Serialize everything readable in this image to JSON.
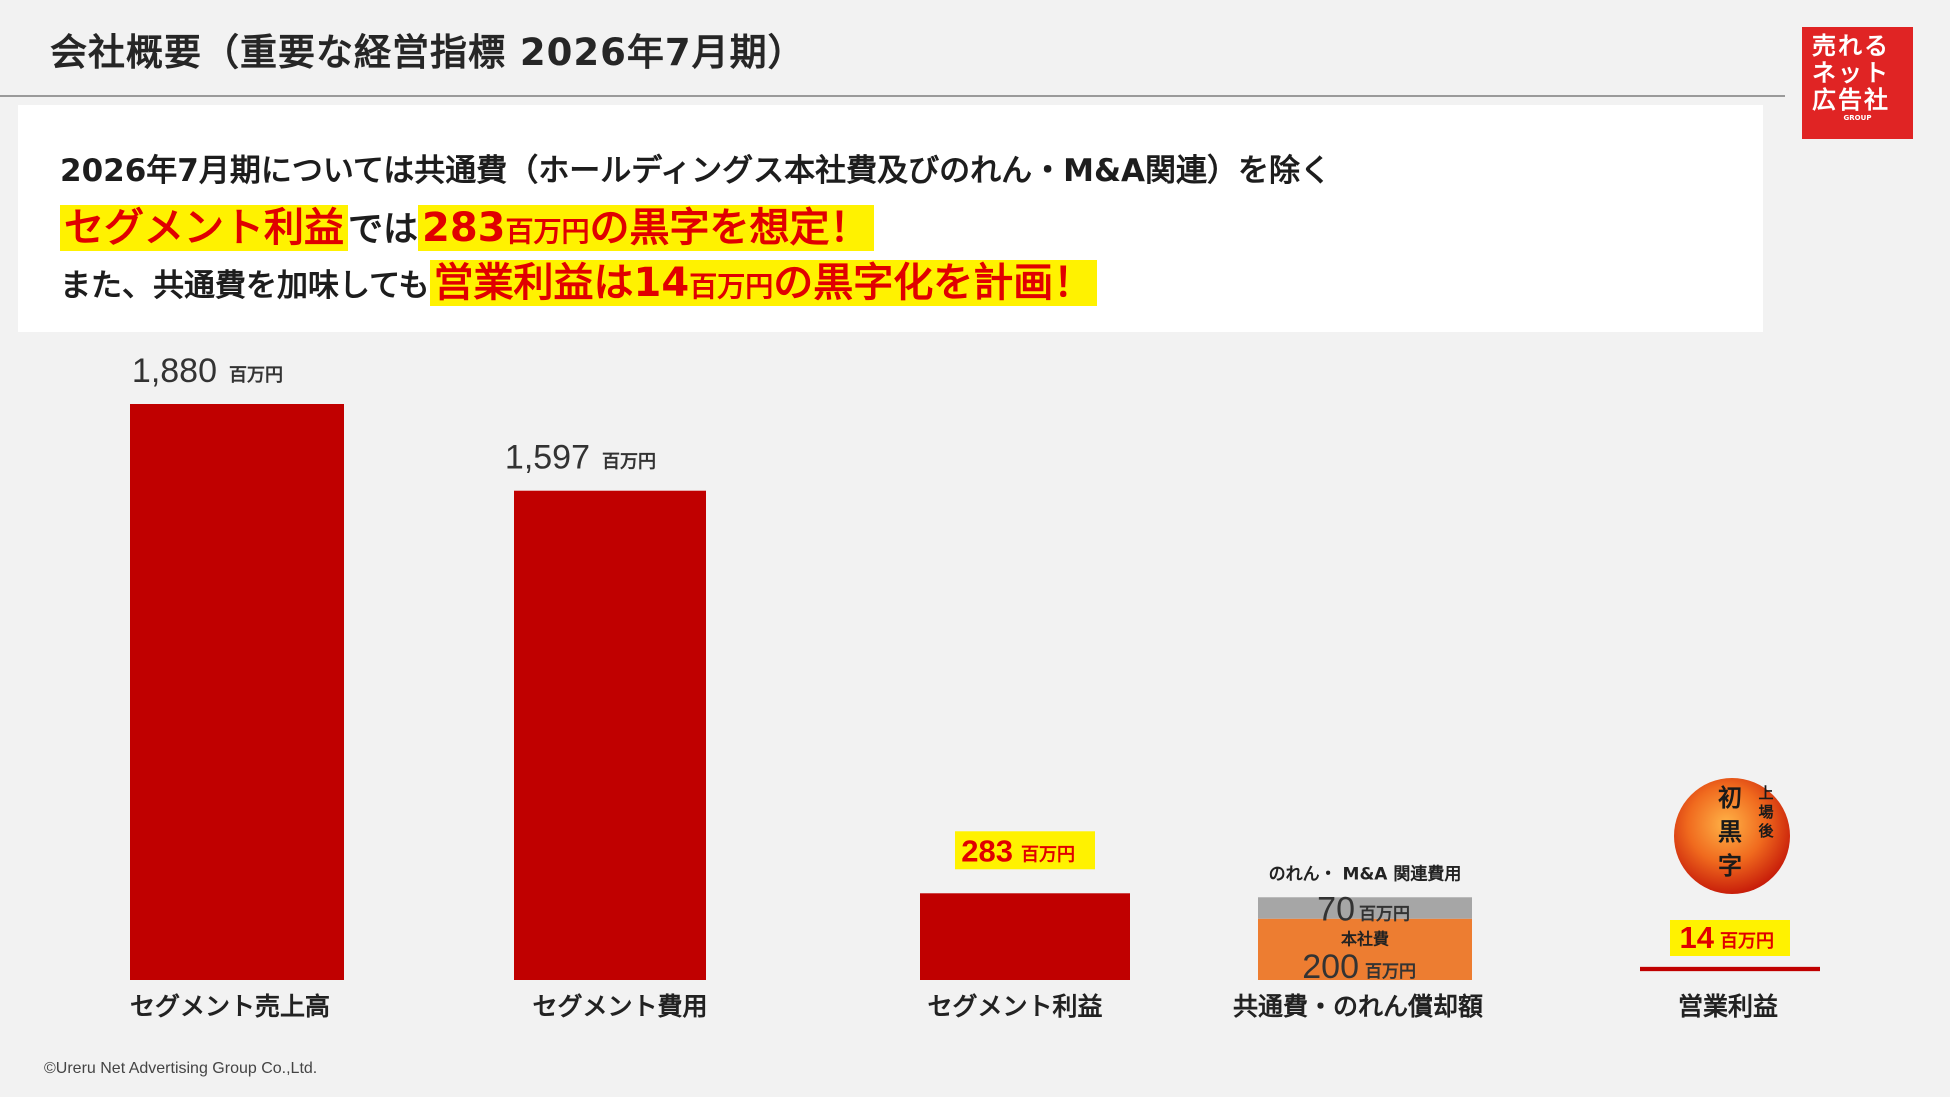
{
  "header": {
    "title": "会社概要（重要な経営指標 2026年7月期）",
    "logo_line1": "売れる",
    "logo_line2": "ネット",
    "logo_line3": "広告社",
    "logo_sub": "GROUP"
  },
  "message": {
    "line1": "2026年7月期については共通費（ホールディングス本社費及びのれん・M&A関連）を除く",
    "line2_hl1": "セグメント利益",
    "line2_mid": "では",
    "line2_hl2_num": "283",
    "line2_hl2_unit": "百万円",
    "line2_hl2_rest": "の黒字を想定！",
    "line3_pre": "また、共通費を加味しても",
    "line3_hl_a": "営業利益は14",
    "line3_hl_unit": "百万円",
    "line3_hl_b": "の黒字化を計画！"
  },
  "chart_data": {
    "type": "bar",
    "unit": "百万円",
    "categories": [
      "セグメント売上高",
      "セグメント費用",
      "セグメント利益",
      "共通費・のれん償却額",
      "営業利益"
    ],
    "values": [
      1880,
      1597,
      283,
      270,
      14
    ],
    "value_labels": [
      "1,880",
      "1,597",
      "283",
      "",
      "14"
    ],
    "stacked_breakdown": {
      "category": "共通費・のれん償却額",
      "segments": [
        {
          "name": "本社費",
          "value": 200,
          "label": "200"
        },
        {
          "name": "のれん・ M&A 関連費用",
          "value": 70,
          "label": "70"
        }
      ]
    },
    "highlighted": [
      "セグメント利益",
      "営業利益"
    ],
    "colors": {
      "bar": "#c00000",
      "hq": "#ed7d31",
      "goodwill": "#a6a6a6",
      "highlight_bg": "#fff200",
      "highlight_text": "#e00000"
    }
  },
  "badge": {
    "line_top": "上場後",
    "line_main": "初黒字"
  },
  "footer": {
    "copyright": "©Ureru Net Advertising Group Co.,Ltd."
  }
}
